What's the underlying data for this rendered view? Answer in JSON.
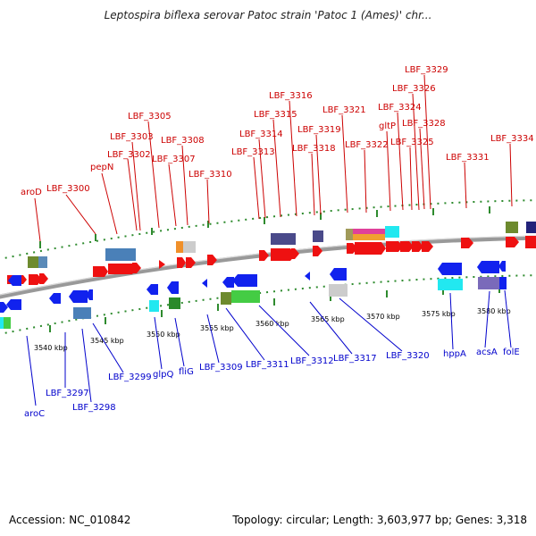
{
  "title": "Leptospira biflexa serovar Patoc strain 'Patoc 1 (Ames)' chr...",
  "footer": {
    "accession": "Accession: NC_010842",
    "topology": "Topology: circular; Length: 3,603,977 bp; Genes: 3,318"
  },
  "colors": {
    "forward_label": "#cc0000",
    "reverse_label": "#0000cc",
    "backbone": "#888888",
    "tick": "#2e8b2e"
  },
  "scale_ticks": [
    {
      "label": "3540 kbp"
    },
    {
      "label": "3545 kbp"
    },
    {
      "label": "3550 kbp"
    },
    {
      "label": "3555 kbp"
    },
    {
      "label": "3560 kbp"
    },
    {
      "label": "3565 kbp"
    },
    {
      "label": "3570 kbp"
    },
    {
      "label": "3575 kbp"
    },
    {
      "label": "3580 kbp"
    }
  ],
  "forward_labels": [
    "aroD",
    "LBF_3300",
    "pepN",
    "LBF_3302",
    "LBF_3303",
    "LBF_3305",
    "LBF_3307",
    "LBF_3308",
    "LBF_3310",
    "LBF_3313",
    "LBF_3314",
    "LBF_3315",
    "LBF_3316",
    "LBF_3318",
    "LBF_3319",
    "LBF_3321",
    "LBF_3322",
    "gltP",
    "LBF_3324",
    "LBF_3325",
    "LBF_3326",
    "LBF_3328",
    "LBF_3329",
    "LBF_3331",
    "LBF_3334"
  ],
  "reverse_labels": [
    "aroC",
    "LBF_3297",
    "LBF_3298",
    "LBF_3299",
    "glpQ",
    "fliG",
    "LBF_3309",
    "LBF_3311",
    "LBF_3312",
    "LBF_3317",
    "LBF_3320",
    "hppA",
    "acsA",
    "folE"
  ]
}
